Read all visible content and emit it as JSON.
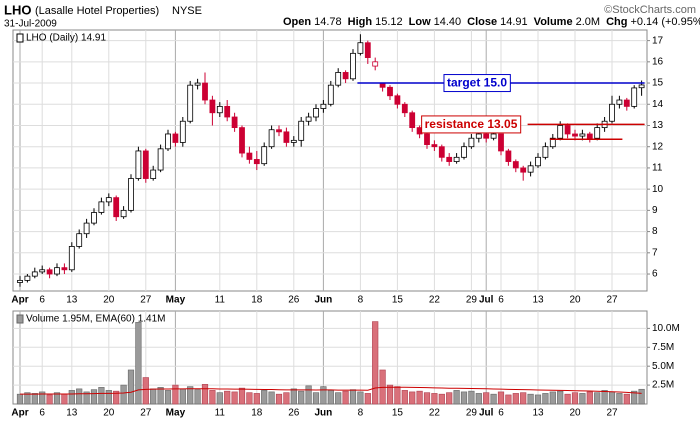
{
  "header": {
    "title": "LHO",
    "subtitle": "(Lasalle Hotel Properties)",
    "exchange": "NYSE",
    "date": "31-Jul-2009",
    "credit": "©StockCharts.com",
    "quote": [
      {
        "label": "Open",
        "value": "14.78"
      },
      {
        "label": "High",
        "value": "15.12"
      },
      {
        "label": "Low",
        "value": "14.40"
      },
      {
        "label": "Close",
        "value": "14.91"
      },
      {
        "label": "Volume",
        "value": "2.0M"
      },
      {
        "label": "Chg",
        "value": "+0.14 (+0.95%)"
      }
    ]
  },
  "chart_data": [
    {
      "type": "candlestick",
      "legend": "LHO (Daily) 14.91",
      "up_color": "#000000",
      "down_color": "#cc0033",
      "grid": true,
      "categories": [
        "Apr",
        null,
        null,
        "6",
        null,
        null,
        null,
        "13",
        null,
        null,
        null,
        null,
        "20",
        null,
        null,
        null,
        null,
        "27",
        null,
        null,
        null,
        "May",
        null,
        null,
        null,
        null,
        null,
        "11",
        null,
        null,
        null,
        null,
        "18",
        null,
        null,
        null,
        null,
        "26",
        null,
        null,
        null,
        "Jun",
        null,
        null,
        null,
        null,
        "8",
        null,
        null,
        null,
        null,
        "15",
        null,
        null,
        null,
        null,
        "22",
        null,
        null,
        null,
        null,
        "29",
        null,
        "Jul",
        null,
        "6",
        null,
        null,
        null,
        null,
        "13",
        null,
        null,
        null,
        null,
        "20",
        null,
        null,
        null,
        null,
        "27",
        null,
        null,
        null,
        null
      ],
      "open": [
        5.6,
        5.7,
        5.9,
        6.1,
        6.2,
        6.0,
        6.3,
        6.2,
        7.3,
        7.9,
        8.4,
        8.9,
        9.4,
        9.6,
        8.7,
        9.0,
        10.5,
        11.8,
        10.5,
        10.9,
        11.9,
        12.6,
        12.2,
        13.2,
        14.9,
        15.0,
        14.2,
        13.6,
        13.9,
        13.4,
        12.9,
        11.7,
        11.4,
        11.2,
        12.0,
        12.8,
        12.7,
        12.2,
        12.3,
        13.2,
        13.4,
        13.8,
        14.0,
        14.9,
        15.5,
        15.2,
        16.4,
        16.9,
        15.8,
        15.0,
        14.8,
        14.4,
        14.0,
        13.6,
        12.9,
        12.6,
        12.1,
        12.0,
        11.5,
        11.3,
        11.5,
        12.0,
        12.4,
        12.6,
        12.4,
        12.6,
        11.8,
        11.3,
        11.0,
        10.8,
        11.1,
        11.5,
        12.0,
        12.4,
        13.0,
        12.6,
        12.5,
        12.6,
        12.4,
        12.9,
        13.2,
        14.0,
        14.2,
        13.9,
        14.78
      ],
      "high": [
        5.9,
        6.0,
        6.3,
        6.4,
        6.3,
        6.5,
        6.5,
        7.5,
        8.1,
        8.6,
        9.1,
        9.6,
        9.8,
        9.7,
        9.2,
        10.7,
        12.0,
        11.9,
        11.1,
        12.1,
        12.8,
        12.7,
        13.4,
        15.1,
        15.2,
        15.5,
        14.4,
        14.1,
        14.2,
        13.6,
        13.0,
        12.0,
        11.8,
        12.2,
        13.0,
        13.0,
        12.9,
        12.5,
        13.4,
        13.6,
        14.0,
        14.2,
        15.1,
        15.7,
        15.6,
        16.6,
        17.3,
        17.0,
        16.2,
        15.0,
        14.9,
        14.5,
        14.1,
        13.7,
        13.0,
        12.7,
        12.3,
        12.1,
        11.7,
        11.7,
        12.2,
        12.6,
        12.8,
        12.7,
        12.8,
        12.6,
        11.9,
        11.4,
        11.1,
        11.3,
        11.7,
        12.2,
        12.6,
        13.2,
        13.1,
        12.8,
        12.8,
        12.7,
        13.1,
        13.4,
        14.4,
        14.4,
        14.3,
        14.9,
        15.12
      ],
      "low": [
        5.4,
        5.6,
        5.8,
        6.0,
        5.8,
        5.9,
        6.0,
        6.1,
        7.2,
        7.7,
        8.3,
        8.8,
        9.2,
        8.5,
        8.6,
        8.9,
        10.4,
        10.3,
        10.4,
        10.8,
        11.8,
        12.0,
        12.0,
        13.1,
        14.7,
        14.0,
        13.0,
        13.4,
        13.2,
        12.7,
        11.5,
        11.2,
        10.9,
        11.1,
        11.9,
        12.5,
        12.0,
        12.0,
        12.0,
        13.0,
        13.2,
        13.6,
        13.9,
        14.8,
        15.0,
        15.1,
        16.3,
        15.9,
        15.6,
        14.6,
        14.2,
        13.8,
        13.4,
        12.7,
        12.4,
        11.9,
        11.8,
        11.3,
        11.1,
        11.2,
        11.4,
        11.9,
        12.2,
        12.2,
        12.3,
        11.6,
        11.1,
        10.8,
        10.4,
        10.6,
        11.0,
        11.4,
        11.9,
        12.3,
        12.4,
        12.3,
        12.3,
        12.2,
        12.3,
        12.7,
        13.1,
        13.8,
        13.7,
        13.8,
        14.4
      ],
      "close": [
        5.7,
        5.9,
        6.1,
        6.2,
        6.0,
        6.3,
        6.2,
        7.3,
        7.9,
        8.4,
        8.9,
        9.4,
        9.6,
        8.7,
        9.0,
        10.5,
        11.8,
        10.5,
        10.9,
        11.9,
        12.6,
        12.2,
        13.2,
        14.9,
        15.0,
        14.2,
        13.6,
        13.9,
        13.4,
        12.9,
        11.7,
        11.4,
        11.2,
        12.0,
        12.8,
        12.7,
        12.2,
        12.3,
        13.2,
        13.4,
        13.8,
        14.0,
        14.9,
        15.5,
        15.2,
        16.4,
        16.9,
        16.2,
        16.0,
        14.8,
        14.4,
        14.0,
        13.6,
        12.9,
        12.6,
        12.1,
        12.0,
        11.5,
        11.3,
        11.5,
        12.0,
        12.4,
        12.6,
        12.4,
        12.6,
        11.8,
        11.3,
        11.0,
        10.8,
        11.1,
        11.5,
        12.0,
        12.4,
        13.0,
        12.6,
        12.5,
        12.6,
        12.4,
        12.9,
        13.2,
        14.0,
        14.2,
        13.9,
        14.77,
        14.91
      ],
      "ylim": [
        5.2,
        17.5
      ],
      "yticks": [
        6,
        7,
        8,
        9,
        10,
        11,
        12,
        13,
        14,
        15,
        16,
        17
      ],
      "annotations": [
        {
          "text": "target 15.0",
          "value": 15.0,
          "color": "#0000cc",
          "from": 46,
          "to": 84
        },
        {
          "text": "resistance 13.05",
          "value": 13.05,
          "color": "#cc0000",
          "from": 69,
          "to": 84
        },
        {
          "value": 12.35,
          "color": "#cc0000",
          "from": 72,
          "to": 81
        }
      ]
    },
    {
      "type": "volume",
      "legend": "Volume 1.95M, EMA(60) 1.41M",
      "grid": true,
      "up_color": "#9a9a9a",
      "down_color": "#d9707a",
      "categories": [
        "Apr",
        null,
        null,
        "6",
        null,
        null,
        null,
        "13",
        null,
        null,
        null,
        null,
        "20",
        null,
        null,
        null,
        null,
        "27",
        null,
        null,
        null,
        "May",
        null,
        null,
        null,
        null,
        null,
        "11",
        null,
        null,
        null,
        null,
        "18",
        null,
        null,
        null,
        null,
        "26",
        null,
        null,
        null,
        "Jun",
        null,
        null,
        null,
        null,
        "8",
        null,
        null,
        null,
        null,
        "15",
        null,
        null,
        null,
        null,
        "22",
        null,
        null,
        null,
        null,
        "29",
        null,
        "Jul",
        null,
        "6",
        null,
        null,
        null,
        null,
        "13",
        null,
        null,
        null,
        null,
        "20",
        null,
        null,
        null,
        null,
        "27",
        null,
        null,
        null,
        null
      ],
      "values": [
        1.3,
        1.5,
        1.4,
        1.6,
        1.2,
        1.5,
        1.3,
        1.8,
        2.0,
        1.6,
        1.9,
        2.2,
        1.8,
        1.7,
        2.5,
        4.5,
        10.8,
        3.5,
        2.0,
        2.2,
        1.8,
        2.5,
        2.0,
        2.3,
        1.9,
        2.6,
        1.8,
        1.5,
        1.7,
        1.6,
        2.1,
        1.5,
        1.4,
        1.8,
        1.6,
        1.3,
        1.5,
        2.0,
        1.7,
        2.4,
        1.5,
        2.3,
        1.8,
        1.5,
        1.7,
        1.9,
        1.6,
        1.4,
        10.9,
        4.5,
        2.5,
        2.3,
        1.8,
        1.6,
        1.7,
        1.5,
        1.4,
        1.3,
        1.5,
        1.8,
        1.6,
        1.7,
        1.4,
        1.5,
        1.3,
        1.6,
        1.2,
        1.4,
        1.5,
        1.3,
        1.2,
        1.4,
        1.6,
        1.7,
        1.3,
        1.5,
        1.4,
        1.6,
        1.5,
        1.8,
        1.6,
        1.4,
        1.3,
        1.7,
        1.95
      ],
      "ema": {
        "color": "#cc0000",
        "values": [
          1.3,
          1.31,
          1.31,
          1.32,
          1.32,
          1.32,
          1.32,
          1.33,
          1.35,
          1.36,
          1.37,
          1.4,
          1.41,
          1.42,
          1.46,
          1.56,
          1.87,
          1.94,
          1.96,
          1.98,
          1.99,
          2.0,
          2.0,
          2.01,
          2.01,
          2.02,
          2.01,
          1.99,
          1.98,
          1.97,
          1.97,
          1.95,
          1.93,
          1.92,
          1.91,
          1.89,
          1.87,
          1.87,
          1.86,
          1.87,
          1.85,
          1.86,
          1.86,
          1.84,
          1.84,
          1.84,
          1.83,
          1.82,
          2.12,
          2.2,
          2.22,
          2.22,
          2.22,
          2.2,
          2.18,
          2.16,
          2.14,
          2.11,
          2.09,
          2.08,
          2.06,
          2.05,
          2.03,
          2.01,
          1.98,
          1.97,
          1.94,
          1.92,
          1.9,
          1.88,
          1.85,
          1.83,
          1.82,
          1.8,
          1.78,
          1.76,
          1.74,
          1.72,
          1.69,
          1.66,
          1.62,
          1.58,
          1.53,
          1.47,
          1.41
        ]
      },
      "ylim": [
        0,
        12.3
      ],
      "yticks": [
        {
          "value": 2.5,
          "label": "2.5M"
        },
        {
          "value": 5.0,
          "label": "5.0M"
        },
        {
          "value": 7.5,
          "label": "7.5M"
        },
        {
          "value": 10.0,
          "label": "10.0M"
        }
      ]
    }
  ]
}
